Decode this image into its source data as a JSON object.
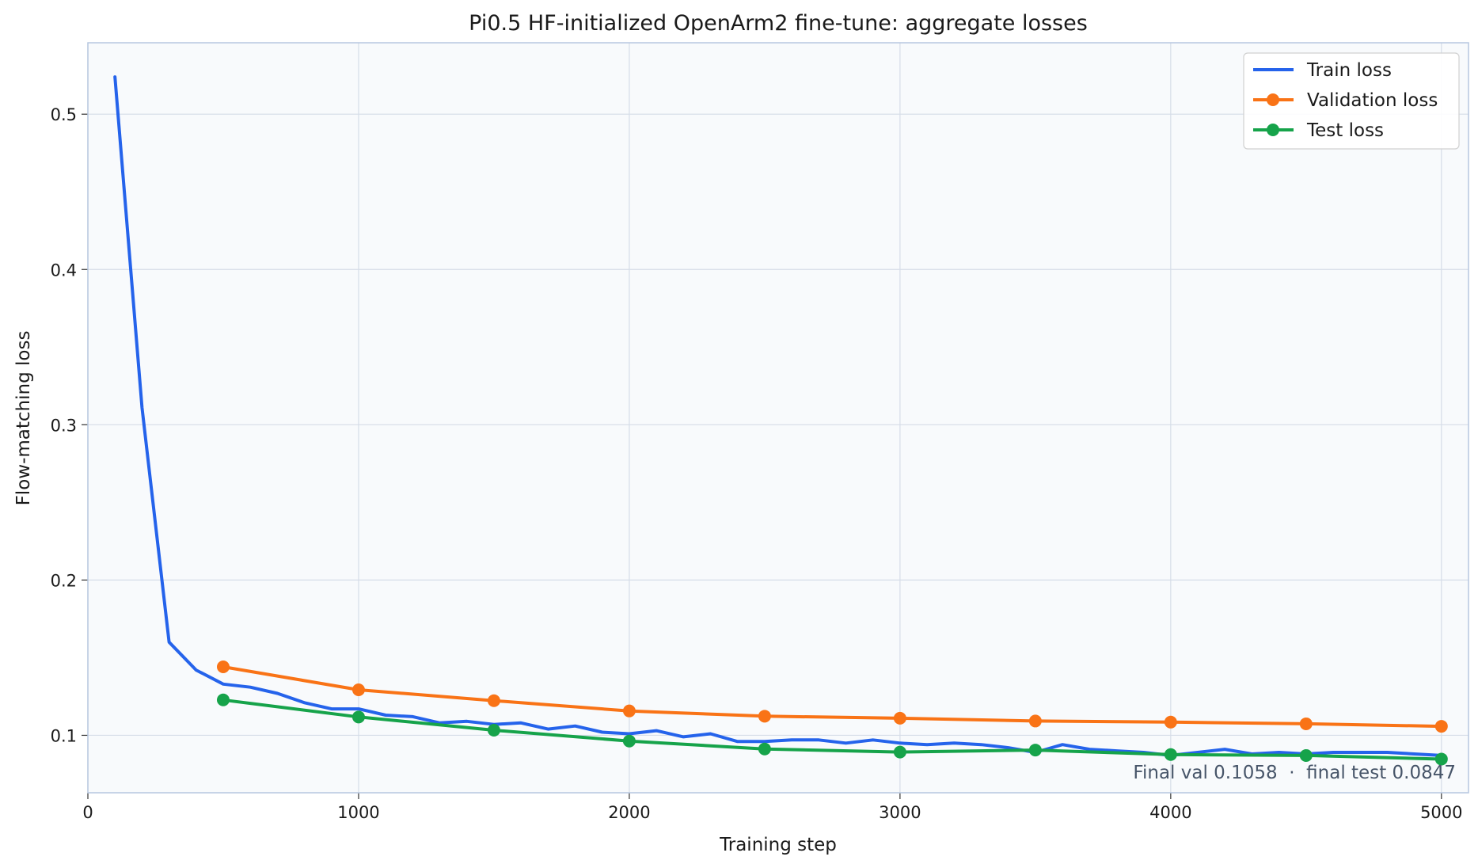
{
  "chart_data": {
    "type": "line",
    "title": "Pi0.5 HF-initialized OpenArm2 fine-tune: aggregate losses",
    "xlabel": "Training step",
    "ylabel": "Flow-matching loss",
    "xlim": [
      0,
      5100
    ],
    "ylim": [
      0.063,
      0.546
    ],
    "x_ticks": [
      0,
      1000,
      2000,
      3000,
      4000,
      5000
    ],
    "y_ticks": [
      0.1,
      0.2,
      0.3,
      0.4,
      0.5
    ],
    "grid": true,
    "legend_position": "top-right",
    "annotation": "Final val 0.1058  ·  final test 0.0847",
    "series": [
      {
        "name": "Train loss",
        "color": "#2563eb",
        "markers": false,
        "x": [
          100,
          200,
          300,
          400,
          500,
          600,
          700,
          800,
          900,
          1000,
          1100,
          1200,
          1300,
          1400,
          1500,
          1600,
          1700,
          1800,
          1900,
          2000,
          2100,
          2200,
          2300,
          2400,
          2500,
          2600,
          2700,
          2800,
          2900,
          3000,
          3100,
          3200,
          3300,
          3400,
          3500,
          3600,
          3700,
          3800,
          3900,
          4000,
          4100,
          4200,
          4300,
          4400,
          4500,
          4600,
          4700,
          4800,
          4900,
          5000
        ],
        "y": [
          0.524,
          0.311,
          0.16,
          0.142,
          0.133,
          0.131,
          0.127,
          0.121,
          0.117,
          0.117,
          0.113,
          0.112,
          0.108,
          0.109,
          0.107,
          0.108,
          0.104,
          0.106,
          0.102,
          0.101,
          0.103,
          0.099,
          0.101,
          0.096,
          0.096,
          0.097,
          0.097,
          0.095,
          0.097,
          0.095,
          0.094,
          0.095,
          0.094,
          0.092,
          0.089,
          0.094,
          0.091,
          0.09,
          0.089,
          0.087,
          0.089,
          0.091,
          0.088,
          0.089,
          0.088,
          0.089,
          0.089,
          0.089,
          0.088,
          0.087
        ]
      },
      {
        "name": "Validation loss",
        "color": "#f97316",
        "markers": true,
        "x": [
          500,
          1000,
          1500,
          2000,
          2500,
          3000,
          3500,
          4000,
          4500,
          5000
        ],
        "y": [
          0.1441,
          0.1293,
          0.1223,
          0.1157,
          0.1123,
          0.111,
          0.1092,
          0.1085,
          0.1074,
          0.1058
        ]
      },
      {
        "name": "Test loss",
        "color": "#16a34a",
        "markers": true,
        "x": [
          500,
          1000,
          1500,
          2000,
          2500,
          3000,
          3500,
          4000,
          4500,
          5000
        ],
        "y": [
          0.1228,
          0.1118,
          0.1033,
          0.0963,
          0.0912,
          0.0892,
          0.0905,
          0.0876,
          0.087,
          0.0847
        ]
      }
    ]
  }
}
